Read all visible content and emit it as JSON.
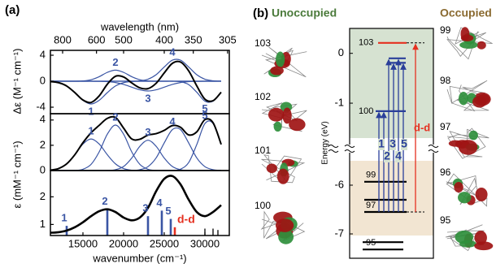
{
  "panel_a": {
    "label": "(a)"
  },
  "chart_data": [
    {
      "type": "line",
      "ylabel": "Δε (M⁻¹ cm⁻¹)",
      "x2label": "wavelength (nm)",
      "x2ticks": [
        800,
        600,
        500,
        400,
        350,
        305
      ],
      "xlim": [
        11000,
        33000
      ],
      "ylim": [
        -5,
        4.75
      ],
      "yticks": [
        4,
        0,
        -4
      ],
      "x": [
        11000,
        12000,
        13000,
        14000,
        15000,
        16000,
        17000,
        18000,
        19000,
        20000,
        21000,
        22000,
        23000,
        24000,
        25000,
        26000,
        27000,
        28000,
        29000,
        30000,
        31000,
        32000
      ],
      "series": [
        {
          "name": "1",
          "color": "#3a55a4",
          "values": [
            -0.05,
            -0.22,
            -0.74,
            -1.75,
            -2.94,
            -3.5,
            -2.94,
            -1.75,
            -0.74,
            -0.22,
            -0.05,
            0,
            0,
            0,
            0,
            0,
            0,
            0,
            0,
            0,
            0,
            0
          ]
        },
        {
          "name": "2",
          "color": "#3a55a4",
          "values": [
            0,
            0,
            0,
            0,
            0.05,
            0.23,
            0.7,
            1.36,
            1.7,
            1.36,
            0.7,
            0.23,
            0.05,
            0,
            0,
            0,
            0,
            0,
            0,
            0,
            0,
            0
          ]
        },
        {
          "name": "3",
          "color": "#3a55a4",
          "values": [
            0,
            0,
            0,
            0,
            0,
            0,
            -0.02,
            -0.07,
            -0.2,
            -0.49,
            -0.91,
            -1.32,
            -1.5,
            -1.32,
            -0.91,
            -0.49,
            -0.2,
            -0.07,
            -0.02,
            0,
            0,
            0
          ]
        },
        {
          "name": "4",
          "color": "#3a55a4",
          "values": [
            0,
            0,
            0,
            0,
            0,
            0,
            0,
            0,
            0,
            0,
            0,
            0.07,
            0.31,
            1,
            2.19,
            3.24,
            3.24,
            2.19,
            1,
            0.31,
            0.07,
            0.01
          ]
        },
        {
          "name": "5",
          "color": "#3a55a4",
          "values": [
            0,
            0,
            0,
            0,
            0,
            0,
            0,
            0,
            0,
            0,
            0,
            0,
            0,
            0,
            0,
            0,
            -0.09,
            -0.52,
            -1.7,
            -3.07,
            -3.07,
            -1.7
          ]
        },
        {
          "color": "#000000",
          "values": [
            -0.05,
            -0.22,
            -0.74,
            -1.75,
            -2.89,
            -3.27,
            -2.26,
            -0.46,
            0.76,
            0.65,
            -0.26,
            -1.02,
            -1.14,
            -0.32,
            1.28,
            2.75,
            2.95,
            1.6,
            -0.72,
            -2.76,
            -3,
            -1.69
          ]
        }
      ]
    },
    {
      "type": "line",
      "ylabel": "ε (mM⁻¹ cm⁻¹)",
      "xlim": [
        11000,
        33000
      ],
      "ylim": [
        0,
        4.5
      ],
      "yticks": [
        4,
        2,
        0
      ],
      "x": [
        11000,
        12000,
        13000,
        14000,
        15000,
        16000,
        17000,
        18000,
        19000,
        20000,
        21000,
        22000,
        23000,
        24000,
        25000,
        26000,
        27000,
        28000,
        29000,
        30000,
        31000,
        32000
      ],
      "series": [
        {
          "name": "1",
          "color": "#3a55a4",
          "values": [
            0.03,
            0.16,
            0.53,
            1.25,
            2.1,
            2.5,
            2.1,
            1.25,
            0.53,
            0.16,
            0.03,
            0,
            0,
            0,
            0,
            0,
            0,
            0,
            0,
            0,
            0,
            0
          ]
        },
        {
          "name": "2",
          "color": "#3a55a4",
          "values": [
            0,
            0,
            0,
            0,
            0.1,
            0.49,
            1.48,
            2.88,
            3.6,
            2.88,
            1.48,
            0.49,
            0.1,
            0,
            0,
            0,
            0,
            0,
            0,
            0,
            0,
            0
          ]
        },
        {
          "name": "3",
          "color": "#3a55a4",
          "values": [
            0,
            0,
            0,
            0,
            0,
            0,
            0,
            0,
            0.07,
            0.32,
            0.99,
            1.92,
            2.4,
            1.92,
            0.99,
            0.32,
            0.07,
            0,
            0,
            0,
            0,
            0
          ]
        },
        {
          "name": "4",
          "color": "#3a55a4",
          "values": [
            0,
            0,
            0,
            0,
            0,
            0,
            0,
            0,
            0,
            0,
            0,
            0.07,
            0.31,
            1,
            2.19,
            3.24,
            3.24,
            2.19,
            1,
            0.31,
            0.07,
            0.01
          ]
        },
        {
          "name": "5",
          "color": "#3a55a4",
          "values": [
            0,
            0,
            0,
            0,
            0,
            0,
            0,
            0,
            0,
            0,
            0,
            0,
            0,
            0,
            0,
            0,
            0.11,
            0.63,
            2.06,
            3.72,
            3.72,
            2.06
          ]
        },
        {
          "color": "#000000",
          "values": [
            0.03,
            0.16,
            0.53,
            1.25,
            2.2,
            2.99,
            3.58,
            4.13,
            4.2,
            3.36,
            2.5,
            2.48,
            2.81,
            2.92,
            3.18,
            3.56,
            3.42,
            2.82,
            3.06,
            4.03,
            3.79,
            2.07
          ]
        }
      ]
    },
    {
      "type": "line",
      "xlabel": "wavenumber (cm⁻¹)",
      "xticks": [
        15000,
        20000,
        25000,
        30000
      ],
      "xlim": [
        11000,
        33000
      ],
      "ylim": [
        0.6,
        2.95
      ],
      "yticks": [
        2,
        1
      ],
      "x": [
        11000,
        12000,
        13000,
        14000,
        15000,
        16000,
        17000,
        18000,
        19000,
        20000,
        21000,
        22000,
        23000,
        24000,
        25000,
        26000,
        27000,
        28000,
        29000,
        30000,
        31000,
        32000
      ],
      "series": [
        {
          "color": "#000000",
          "values": [
            0.7,
            0.72,
            0.78,
            0.9,
            1.08,
            1.3,
            1.48,
            1.55,
            1.45,
            1.25,
            1.15,
            1.25,
            1.6,
            2.2,
            2.65,
            2.75,
            2.45,
            1.9,
            1.45,
            1.3,
            1.45,
            1.7
          ]
        }
      ],
      "sticks": {
        "x": [
          13000,
          18000,
          23000,
          24700,
          25800,
          26300,
          30000,
          31000,
          31600
        ],
        "values": [
          0.95,
          1.55,
          1.3,
          1.5,
          1.2,
          0.9,
          0.85,
          0.85,
          0.8
        ],
        "labels": [
          "1",
          "2",
          "3",
          "4",
          "5",
          "d-d",
          null,
          null,
          null
        ],
        "colors": [
          "#3a55a4",
          "#3a55a4",
          "#3a55a4",
          "#3a55a4",
          "#3a55a4",
          "#e53020",
          "#000000",
          "#000000",
          "#000000"
        ]
      }
    }
  ],
  "energy_diagram": {
    "label": "(b)",
    "unoccupied": "Unoccupied",
    "occupied": "Occupied",
    "ylabel": "Energy (eV)",
    "ylims": [
      [
        -1.7,
        0.5
      ],
      [
        -7.5,
        -5.5
      ]
    ],
    "yticks": [
      0,
      -1,
      -6,
      -7
    ],
    "levels": [
      {
        "value": 0.21,
        "label": "103",
        "color": "#e53020"
      },
      {
        "value": -0.1,
        "label": null,
        "color": "#2a3f9a"
      },
      {
        "value": -0.19,
        "label": null,
        "color": "#2a3f9a"
      },
      {
        "value": -1.16,
        "label": "100",
        "color": "#2a3f9a"
      },
      {
        "value": -5.93,
        "label": "99",
        "color": "#000000"
      },
      {
        "value": -6.3,
        "label": null,
        "color": "#000000"
      },
      {
        "value": -6.55,
        "label": "97",
        "color": "#000000"
      },
      {
        "value": -7.17,
        "label": null,
        "color": "#000000"
      },
      {
        "value": -7.32,
        "label": "95",
        "color": "#000000"
      }
    ],
    "transitions": [
      "1",
      "2",
      "3",
      "4",
      "5",
      "d-d"
    ],
    "orbitals_left": [
      "103",
      "102",
      "101",
      "100"
    ],
    "orbitals_right": [
      "99",
      "98",
      "97",
      "96",
      "95"
    ]
  }
}
